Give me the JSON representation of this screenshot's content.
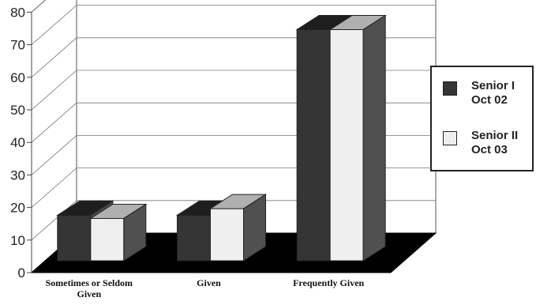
{
  "chart_data": {
    "type": "bar",
    "title": "",
    "xlabel": "",
    "ylabel": "",
    "ylim": [
      0,
      80
    ],
    "yticks": [
      "0",
      "10",
      "20",
      "30",
      "40",
      "50",
      "60",
      "70",
      "80"
    ],
    "categories": [
      [
        "Sometimes or Seldom",
        "Given"
      ],
      [
        "Given"
      ],
      [
        "Frequently Given"
      ]
    ],
    "series": [
      {
        "name": [
          "Senior I",
          "Oct 02"
        ],
        "color": "#353535",
        "values": [
          14,
          14,
          71
        ]
      },
      {
        "name": [
          "Senior II",
          "Oct 03"
        ],
        "color": "#efefef",
        "values": [
          13,
          16,
          71
        ]
      }
    ],
    "grid": true,
    "legend_position": "right",
    "style": "3d-clustered-bar",
    "floor_color": "#000000"
  }
}
